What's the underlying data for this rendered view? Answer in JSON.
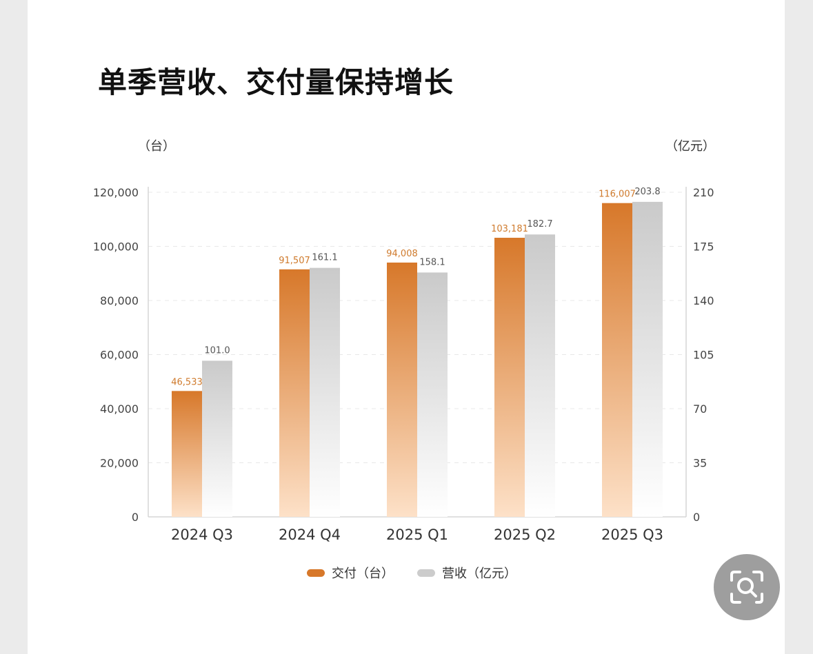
{
  "title": "单季营收、交付量保持增长",
  "units": {
    "left": "（台）",
    "right": "（亿元）"
  },
  "colors": {
    "deliveries": "#d7782a",
    "revenue": "#c9c9c9"
  },
  "chart_data": {
    "type": "bar",
    "title": "单季营收、交付量保持增长",
    "categories": [
      "2024 Q3",
      "2024 Q4",
      "2025 Q1",
      "2025 Q2",
      "2025 Q3"
    ],
    "series": [
      {
        "name": "交付（台）",
        "axis": "left",
        "values": [
          46533,
          91507,
          94008,
          103181,
          116007
        ],
        "labels": [
          "46,533",
          "91,507",
          "94,008",
          "103,181",
          "116,007"
        ]
      },
      {
        "name": "营收（亿元）",
        "axis": "right",
        "values": [
          101.0,
          161.1,
          158.1,
          182.7,
          203.8
        ],
        "labels": [
          "101.0",
          "161.1",
          "158.1",
          "182.7",
          "203.8"
        ]
      }
    ],
    "y_left": {
      "ylim": [
        0,
        120000
      ],
      "ticks": [
        "0",
        "20,000",
        "40,000",
        "60,000",
        "80,000",
        "100,000",
        "120,000"
      ],
      "unit": "（台）"
    },
    "y_right": {
      "ylim": [
        0,
        210
      ],
      "ticks": [
        "0",
        "35",
        "70",
        "105",
        "140",
        "175",
        "210"
      ],
      "unit": "（亿元）"
    },
    "grid": true,
    "legend": "bottom-center"
  },
  "legend": [
    {
      "label": "交付（台）"
    },
    {
      "label": "营收（亿元）"
    }
  ],
  "zoom_icon": "search-scan-icon"
}
